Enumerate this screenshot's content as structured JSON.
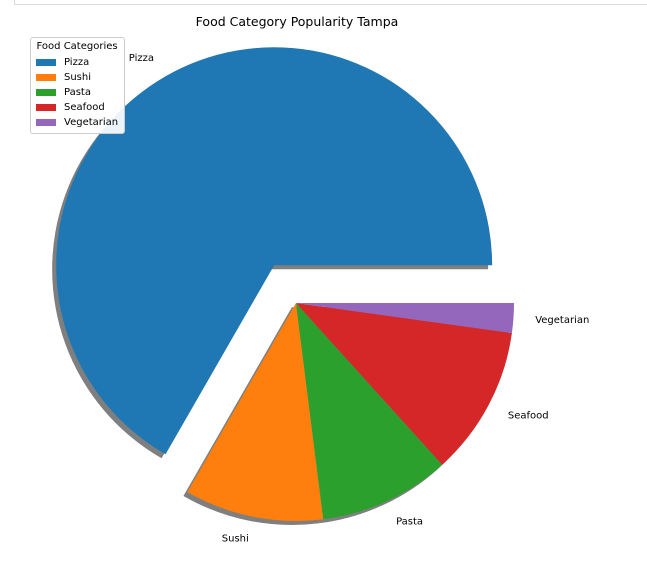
{
  "chart_data": {
    "type": "pie",
    "title": "Food Category Popularity Tampa",
    "categories": [
      "Pizza",
      "Sushi",
      "Pasta",
      "Seafood",
      "Vegetarian"
    ],
    "values": [
      66.7,
      10.3,
      9.7,
      11.1,
      2.2
    ],
    "colors": [
      "#1f77b4",
      "#ff7f0e",
      "#2ca02c",
      "#d62728",
      "#9467bd"
    ],
    "explode": [
      0.2,
      0,
      0,
      0,
      0
    ],
    "shadow": true,
    "start_angle_deg": 0,
    "legend": {
      "title": "Food Categories",
      "placement": "upper-left",
      "entries": [
        "Pizza",
        "Sushi",
        "Pasta",
        "Seafood",
        "Vegetarian"
      ]
    }
  }
}
